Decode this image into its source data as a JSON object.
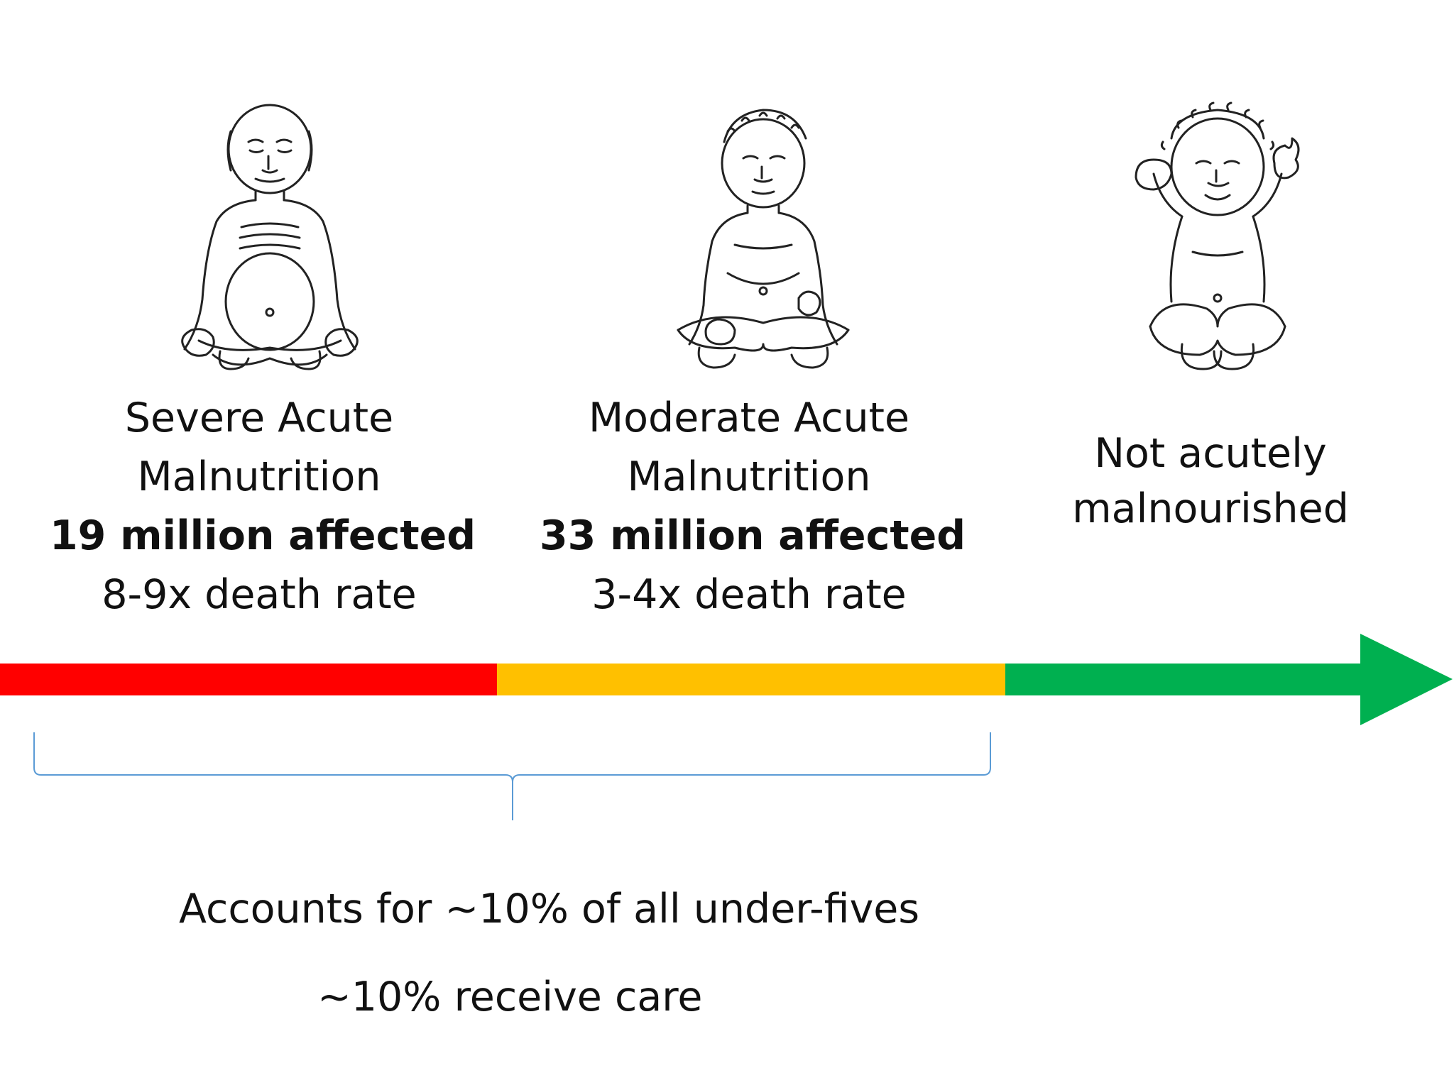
{
  "stages": [
    {
      "id": "severe",
      "title_line1": "Severe Acute",
      "title_line2": "Malnutrition",
      "affected": "19 million affected",
      "death_rate": "8-9x death rate",
      "color": "#ff0000"
    },
    {
      "id": "moderate",
      "title_line1": "Moderate Acute",
      "title_line2": "Malnutrition",
      "affected": "33 million affected",
      "death_rate": "3-4x death rate",
      "color": "#ffc000"
    },
    {
      "id": "normal",
      "title_line1": "Not acutely",
      "title_line2": "malnourished",
      "color": "#00b050"
    }
  ],
  "brace_color": "#5b9bd5",
  "footer": {
    "share_text": "Accounts for ~10% of all under-fives",
    "care_text": "~10% receive care"
  }
}
